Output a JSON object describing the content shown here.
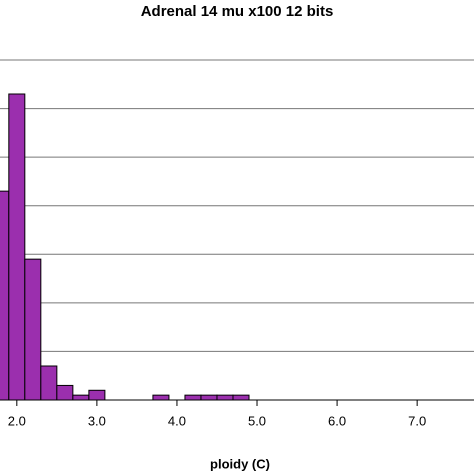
{
  "chart_data": {
    "type": "histogram",
    "title": "Adrenal 14 mu x100 12 bits",
    "x_label": "ploidy (C)",
    "bins": [
      1.7,
      1.9,
      2.1,
      2.3,
      2.5,
      2.7,
      2.9,
      3.1,
      3.3,
      3.5,
      3.7,
      3.9,
      4.1,
      4.3,
      4.5,
      4.7,
      4.9
    ],
    "values": [
      4.3,
      6.3,
      2.9,
      0.7,
      0.3,
      0.1,
      0.2,
      0,
      0,
      0,
      0.1,
      0,
      0.1,
      0.1,
      0.1,
      0.1
    ],
    "color": "#9b2fae",
    "xlim": [
      1.79,
      7.71
    ],
    "xticks": [
      {
        "value": 2,
        "label": "2.0"
      },
      {
        "value": 3,
        "label": "3.0"
      },
      {
        "value": 4,
        "label": "4.0"
      },
      {
        "value": 5,
        "label": "5.0"
      },
      {
        "value": 6,
        "label": "6.0"
      },
      {
        "value": 7,
        "label": "7.0"
      }
    ],
    "ylim": [
      0,
      7
    ],
    "yticks": [
      0,
      1,
      2,
      3,
      4,
      5,
      6,
      7
    ],
    "grid": true
  }
}
